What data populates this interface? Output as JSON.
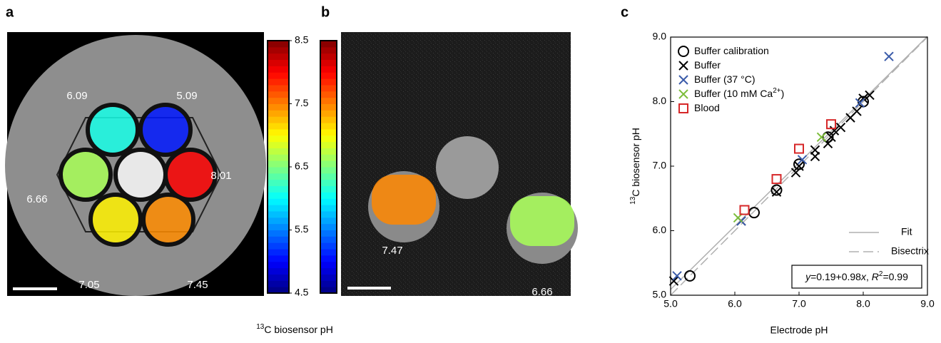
{
  "panel_a": {
    "label": "a",
    "values": [
      6.09,
      5.09,
      6.66,
      8.01,
      7.05,
      7.45
    ]
  },
  "panel_b": {
    "label": "b",
    "values": [
      7.47,
      6.66
    ]
  },
  "colorbar": {
    "lim": [
      4.5,
      8.5
    ],
    "ticks": [
      {
        "value": 8.5,
        "label": "8.5"
      },
      {
        "value": 7.5,
        "label": "7.5"
      },
      {
        "value": 6.5,
        "label": "6.5"
      },
      {
        "value": 5.5,
        "label": "5.5"
      },
      {
        "value": 4.5,
        "label": "4.5"
      }
    ],
    "label_sup": "13",
    "label": "C biosensor pH"
  },
  "chart_data": {
    "type": "scatter",
    "panel_label": "c",
    "xlabel": "Electrode pH",
    "ylabel_sup": "13",
    "ylabel": "C biosensor pH",
    "xlim": [
      5,
      9
    ],
    "ylim": [
      5,
      9
    ],
    "xticks": [
      {
        "value": 5,
        "label": "5.0"
      },
      {
        "value": 6,
        "label": "6.0"
      },
      {
        "value": 7,
        "label": "7.0"
      },
      {
        "value": 8,
        "label": "8.0"
      },
      {
        "value": 9,
        "label": "9.0"
      }
    ],
    "yticks": [
      {
        "value": 5,
        "label": "5.0"
      },
      {
        "value": 6,
        "label": "6.0"
      },
      {
        "value": 7,
        "label": "7.0"
      },
      {
        "value": 8,
        "label": "8.0"
      },
      {
        "value": 9,
        "label": "9.0"
      }
    ],
    "series": [
      {
        "name": "Buffer calibration",
        "marker": "o",
        "color": "#000000",
        "x": [
          5.3,
          6.3,
          6.65,
          7.0,
          7.45,
          8.0
        ],
        "values": [
          5.3,
          6.28,
          6.63,
          7.03,
          7.45,
          8.0
        ]
      },
      {
        "name": "Buffer",
        "marker": "x",
        "color": "#000000",
        "x": [
          5.05,
          6.1,
          6.65,
          6.95,
          7.0,
          7.25,
          7.25,
          7.45,
          7.5,
          7.55,
          7.65,
          7.8,
          7.9,
          8.0,
          8.1
        ],
        "values": [
          5.22,
          6.15,
          6.6,
          6.9,
          7.0,
          7.15,
          7.25,
          7.35,
          7.45,
          7.55,
          7.6,
          7.75,
          7.85,
          8.05,
          8.1
        ]
      },
      {
        "name": "Buffer (37 °C)",
        "marker": "x",
        "color": "#3a5ba9",
        "x": [
          5.1,
          6.1,
          7.05,
          7.95,
          8.4
        ],
        "values": [
          5.3,
          6.15,
          7.1,
          7.98,
          8.7
        ]
      },
      {
        "name": "Buffer (10 mM Ca",
        "name_sup": "2+",
        "name_end": ")",
        "marker": "x",
        "color": "#7cbd3a",
        "x": [
          6.05,
          7.35
        ],
        "values": [
          6.2,
          7.45
        ]
      },
      {
        "name": "Blood",
        "marker": "s",
        "color": "#d62728",
        "x": [
          6.15,
          6.65,
          7.0,
          7.5
        ],
        "values": [
          6.32,
          6.8,
          7.27,
          7.65
        ]
      }
    ],
    "fit": {
      "name": "Fit",
      "intercept": 0.19,
      "slope": 0.98,
      "color": "#b0b0b0"
    },
    "bisectrix": {
      "name": "Bisectrix",
      "color": "#b0b0b0"
    },
    "equation": {
      "y": "y",
      "mid": "=0.19+0.98",
      "x": "x",
      "sep": ", ",
      "r": "R",
      "sup": "2",
      "end": "=0.99"
    }
  }
}
